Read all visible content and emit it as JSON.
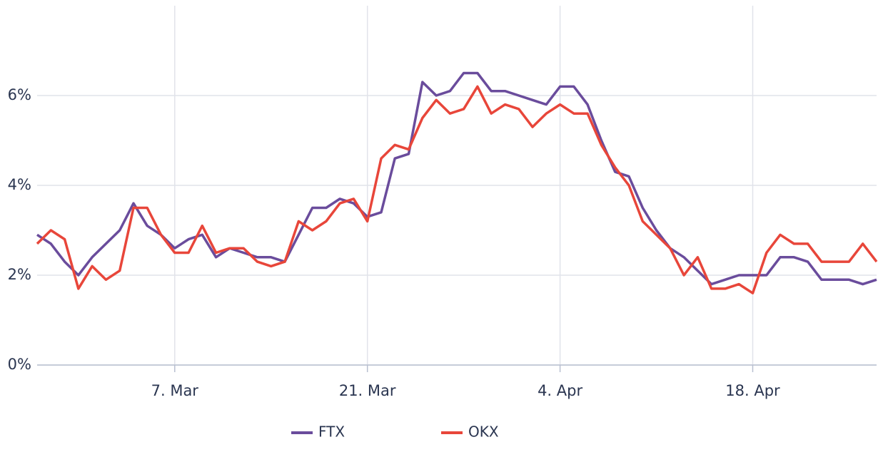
{
  "chart_data": {
    "type": "line",
    "x": [
      "25. Feb",
      "26. Feb",
      "27. Feb",
      "28. Feb",
      "1. Mar",
      "2. Mar",
      "3. Mar",
      "4. Mar",
      "5. Mar",
      "6. Mar",
      "7. Mar",
      "8. Mar",
      "9. Mar",
      "10. Mar",
      "11. Mar",
      "12. Mar",
      "13. Mar",
      "14. Mar",
      "15. Mar",
      "16. Mar",
      "17. Mar",
      "18. Mar",
      "19. Mar",
      "20. Mar",
      "21. Mar",
      "22. Mar",
      "23. Mar",
      "24. Mar",
      "25. Mar",
      "26. Mar",
      "27. Mar",
      "28. Mar",
      "29. Mar",
      "30. Mar",
      "31. Mar",
      "1. Apr",
      "2. Apr",
      "3. Apr",
      "4. Apr",
      "5. Apr",
      "6. Apr",
      "7. Apr",
      "8. Apr",
      "9. Apr",
      "10. Apr",
      "11. Apr",
      "12. Apr",
      "13. Apr",
      "14. Apr",
      "15. Apr",
      "16. Apr",
      "17. Apr",
      "18. Apr",
      "19. Apr",
      "20. Apr",
      "21. Apr",
      "22. Apr",
      "23. Apr",
      "24. Apr",
      "25. Apr",
      "26. Apr",
      "27. Apr"
    ],
    "series": [
      {
        "name": "FTX",
        "color": "#6a4c9c",
        "values": [
          2.9,
          2.7,
          2.3,
          2.0,
          2.4,
          2.7,
          3.0,
          3.6,
          3.1,
          2.9,
          2.6,
          2.8,
          2.9,
          2.4,
          2.6,
          2.5,
          2.4,
          2.4,
          2.3,
          2.9,
          3.5,
          3.5,
          3.7,
          3.6,
          3.3,
          3.4,
          4.6,
          4.7,
          6.3,
          6.0,
          6.1,
          6.5,
          6.5,
          6.1,
          6.1,
          6.0,
          5.9,
          5.8,
          6.2,
          6.2,
          5.8,
          5.0,
          4.3,
          4.2,
          3.5,
          3.0,
          2.6,
          2.4,
          2.1,
          1.8,
          1.9,
          2.0,
          2.0,
          2.0,
          2.4,
          2.4,
          2.3,
          1.9,
          1.9,
          1.9,
          1.8,
          1.9
        ]
      },
      {
        "name": "OKX",
        "color": "#e8463a",
        "values": [
          2.7,
          3.0,
          2.8,
          1.7,
          2.2,
          1.9,
          2.1,
          3.5,
          3.5,
          2.9,
          2.5,
          2.5,
          3.1,
          2.5,
          2.6,
          2.6,
          2.3,
          2.2,
          2.3,
          3.2,
          3.0,
          3.2,
          3.6,
          3.7,
          3.2,
          4.6,
          4.9,
          4.8,
          5.5,
          5.9,
          5.6,
          5.7,
          6.2,
          5.6,
          5.8,
          5.7,
          5.3,
          5.6,
          5.8,
          5.6,
          5.6,
          4.9,
          4.4,
          4.0,
          3.2,
          2.9,
          2.6,
          2.0,
          2.4,
          1.7,
          1.7,
          1.8,
          1.6,
          2.5,
          2.9,
          2.7,
          2.7,
          2.3,
          2.3,
          2.3,
          2.7,
          2.3
        ]
      }
    ],
    "xticks": [
      "7. Mar",
      "21. Mar",
      "4. Apr",
      "18. Apr"
    ],
    "ylim": [
      0,
      8
    ],
    "yticks": [
      {
        "value": 0,
        "label": "0%"
      },
      {
        "value": 2,
        "label": "2%"
      },
      {
        "value": 4,
        "label": "4%"
      },
      {
        "value": 6,
        "label": "6%"
      }
    ],
    "grid": true,
    "legend": "bottom"
  }
}
